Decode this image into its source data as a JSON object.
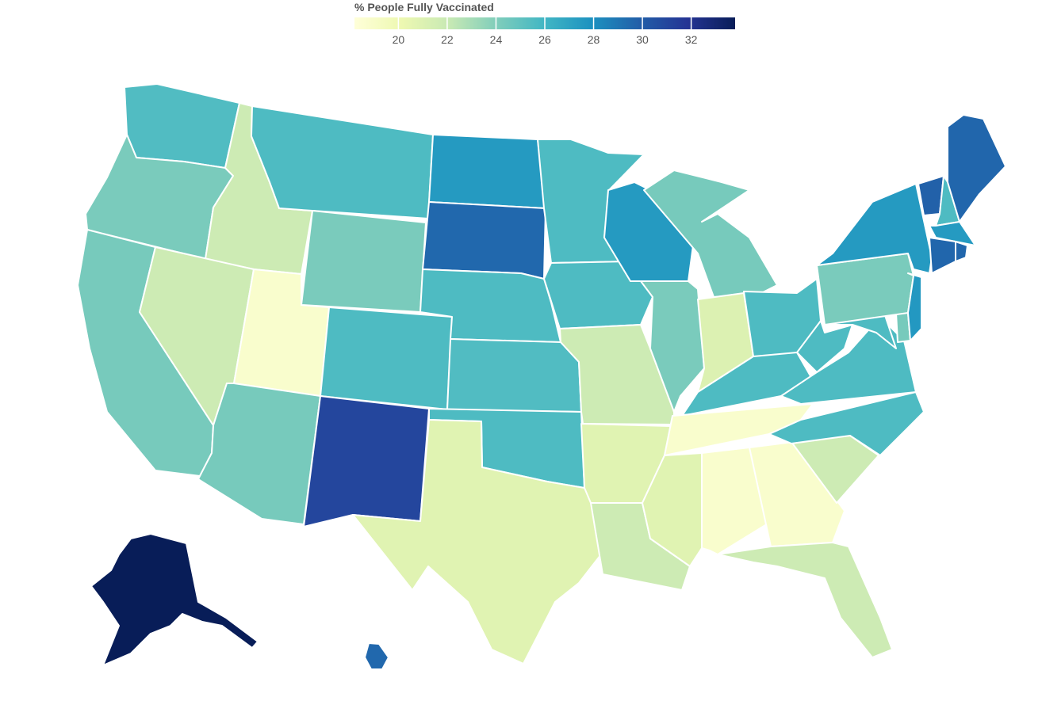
{
  "legend": {
    "title": "% People Fully Vaccinated",
    "range": [
      18.2,
      33.8
    ],
    "ticks": [
      "20",
      "22",
      "24",
      "26",
      "28",
      "30",
      "32"
    ],
    "colors": [
      "#ffffd9",
      "#edf8b1",
      "#c7e9b4",
      "#7fcdbb",
      "#41b6c4",
      "#1d91c0",
      "#225ea8",
      "#253494",
      "#081d58"
    ]
  },
  "chart_data": {
    "type": "choropleth",
    "title": "% People Fully Vaccinated",
    "colorscale": "YlGnBu",
    "color_range": [
      18.2,
      33.8
    ],
    "states": [
      {
        "code": "WA",
        "value": 25.5
      },
      {
        "code": "OR",
        "value": 24.2
      },
      {
        "code": "CA",
        "value": 24.3
      },
      {
        "code": "ID",
        "value": 21.8
      },
      {
        "code": "NV",
        "value": 21.8
      },
      {
        "code": "UT",
        "value": 18.8
      },
      {
        "code": "AZ",
        "value": 24.3
      },
      {
        "code": "MT",
        "value": 25.6
      },
      {
        "code": "WY",
        "value": 24.2
      },
      {
        "code": "CO",
        "value": 25.6
      },
      {
        "code": "NM",
        "value": 31.0
      },
      {
        "code": "ND",
        "value": 27.5
      },
      {
        "code": "SD",
        "value": 29.5
      },
      {
        "code": "NE",
        "value": 25.6
      },
      {
        "code": "KS",
        "value": 25.5
      },
      {
        "code": "OK",
        "value": 25.6
      },
      {
        "code": "TX",
        "value": 20.8
      },
      {
        "code": "MN",
        "value": 25.6
      },
      {
        "code": "IA",
        "value": 25.6
      },
      {
        "code": "MO",
        "value": 21.8
      },
      {
        "code": "AR",
        "value": 20.8
      },
      {
        "code": "LA",
        "value": 21.8
      },
      {
        "code": "WI",
        "value": 27.5
      },
      {
        "code": "IL",
        "value": 24.2
      },
      {
        "code": "MI",
        "value": 24.3
      },
      {
        "code": "IN",
        "value": 21.0
      },
      {
        "code": "OH",
        "value": 25.6
      },
      {
        "code": "KY",
        "value": 25.6
      },
      {
        "code": "TN",
        "value": 18.8
      },
      {
        "code": "MS",
        "value": 20.8
      },
      {
        "code": "AL",
        "value": 18.8
      },
      {
        "code": "GA",
        "value": 18.8
      },
      {
        "code": "FL",
        "value": 21.8
      },
      {
        "code": "SC",
        "value": 21.8
      },
      {
        "code": "NC",
        "value": 25.6
      },
      {
        "code": "VA",
        "value": 25.6
      },
      {
        "code": "WV",
        "value": 25.6
      },
      {
        "code": "MD",
        "value": 25.6
      },
      {
        "code": "DE",
        "value": 24.3
      },
      {
        "code": "PA",
        "value": 24.2
      },
      {
        "code": "NJ",
        "value": 27.6
      },
      {
        "code": "NY",
        "value": 27.5
      },
      {
        "code": "CT",
        "value": 29.6
      },
      {
        "code": "RI",
        "value": 29.6
      },
      {
        "code": "MA",
        "value": 27.5
      },
      {
        "code": "VT",
        "value": 29.8
      },
      {
        "code": "NH",
        "value": 25.6
      },
      {
        "code": "ME",
        "value": 29.6
      },
      {
        "code": "AK",
        "value": 33.8
      },
      {
        "code": "HI",
        "value": 29.5
      }
    ]
  }
}
